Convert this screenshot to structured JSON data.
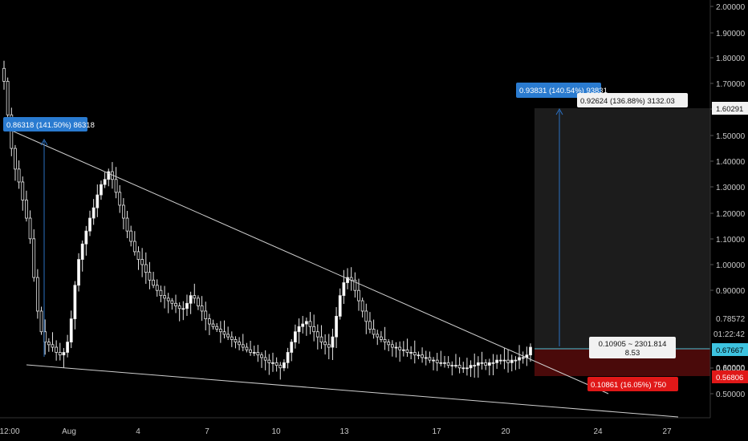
{
  "chart_data": {
    "type": "candlestick",
    "title": "",
    "xlabel": "",
    "ylabel": "",
    "ylim": [
      0.45,
      2.02
    ],
    "y_ticks": [
      "2.00000",
      "1.90000",
      "1.80000",
      "1.70000",
      "1.60000",
      "1.50000",
      "1.40000",
      "1.30000",
      "1.20000",
      "1.10000",
      "1.00000",
      "0.90000",
      "0.60000",
      "0.50000"
    ],
    "x_ticks": [
      "12:00",
      "Aug",
      "4",
      "7",
      "10",
      "13",
      "17",
      "20",
      "24",
      "27"
    ],
    "grid": false,
    "price_tags": {
      "target": "1.60291",
      "last_high": "0.78572",
      "countdown": "01:22:42",
      "current": "0.67667",
      "low": "0.60000",
      "stop": "0.56806"
    },
    "position": {
      "type": "long",
      "entry": 0.67667,
      "target": 1.60291,
      "stop": 0.56806,
      "target_label": "0.92624 (136.88%) 3132.03",
      "center_label_line1": "0.10905 ~ 2301.814",
      "center_label_line2": "8.53",
      "stop_label": "0.10861 (16.05%) 750"
    },
    "measure_labels": {
      "left": "0.86318 (141.50%) 86318",
      "right": "0.93831 (140.54%) 93831"
    },
    "wedge": {
      "upper": [
        [
          0,
          1.51
        ],
        [
          1,
          0.57
        ]
      ],
      "lower": [
        [
          0,
          0.62
        ],
        [
          1,
          0.45
        ]
      ]
    },
    "candles_close": [
      1.71,
      1.58,
      1.45,
      1.37,
      1.32,
      1.25,
      1.18,
      1.1,
      0.95,
      0.82,
      0.74,
      0.7,
      0.69,
      0.68,
      0.66,
      0.65,
      0.66,
      0.7,
      0.79,
      0.92,
      1.02,
      1.08,
      1.13,
      1.18,
      1.22,
      1.27,
      1.31,
      1.33,
      1.36,
      1.33,
      1.28,
      1.23,
      1.18,
      1.13,
      1.09,
      1.05,
      1.02,
      1.0,
      0.97,
      0.94,
      0.92,
      0.9,
      0.88,
      0.87,
      0.86,
      0.85,
      0.84,
      0.83,
      0.83,
      0.85,
      0.88,
      0.87,
      0.84,
      0.82,
      0.79,
      0.77,
      0.76,
      0.75,
      0.74,
      0.73,
      0.72,
      0.71,
      0.7,
      0.69,
      0.68,
      0.67,
      0.66,
      0.66,
      0.65,
      0.64,
      0.63,
      0.62,
      0.62,
      0.61,
      0.6,
      0.62,
      0.66,
      0.7,
      0.74,
      0.76,
      0.77,
      0.78,
      0.76,
      0.74,
      0.72,
      0.7,
      0.69,
      0.68,
      0.72,
      0.8,
      0.88,
      0.93,
      0.95,
      0.94,
      0.9,
      0.86,
      0.82,
      0.78,
      0.75,
      0.73,
      0.72,
      0.71,
      0.7,
      0.69,
      0.68,
      0.68,
      0.67,
      0.67,
      0.66,
      0.66,
      0.65,
      0.65,
      0.64,
      0.64,
      0.63,
      0.63,
      0.62,
      0.62,
      0.62,
      0.61,
      0.61,
      0.61,
      0.6,
      0.6,
      0.6,
      0.61,
      0.61,
      0.62,
      0.62,
      0.61,
      0.62,
      0.62,
      0.63,
      0.63,
      0.63,
      0.62,
      0.63,
      0.63,
      0.64,
      0.64,
      0.65,
      0.68
    ]
  }
}
